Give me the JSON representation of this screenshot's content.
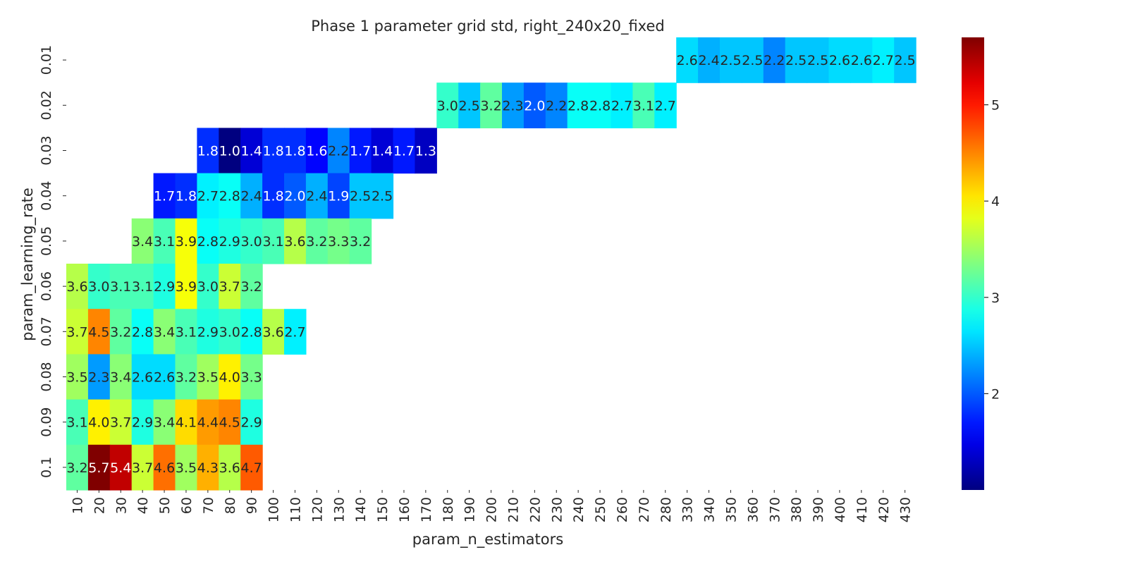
{
  "chart_data": {
    "type": "heatmap",
    "title": "Phase 1 parameter grid std, right_240x20_fixed",
    "xlabel": "param_n_estimators",
    "ylabel": "param_learning_rate",
    "colormap": "jet",
    "color_range": [
      1.0,
      5.7
    ],
    "colorbar_ticks": [
      2,
      3,
      4,
      5
    ],
    "x_categories": [
      "10",
      "20",
      "30",
      "40",
      "50",
      "60",
      "70",
      "80",
      "90",
      "100",
      "110",
      "120",
      "130",
      "140",
      "150",
      "160",
      "170",
      "180",
      "190",
      "200",
      "210",
      "220",
      "230",
      "240",
      "250",
      "260",
      "270",
      "280",
      "330",
      "340",
      "350",
      "360",
      "370",
      "380",
      "390",
      "400",
      "410",
      "420",
      "430"
    ],
    "y_categories": [
      "0.01",
      "0.02",
      "0.03",
      "0.04",
      "0.05",
      "0.06",
      "0.07",
      "0.08",
      "0.09",
      "0.1"
    ],
    "rows": [
      {
        "y": "0.01",
        "start": 28,
        "values": [
          2.6,
          2.4,
          2.5,
          2.5,
          2.2,
          2.5,
          2.5,
          2.6,
          2.6,
          2.7,
          2.5
        ]
      },
      {
        "y": "0.02",
        "start": 17,
        "values": [
          3.0,
          2.5,
          3.2,
          2.3,
          2.0,
          2.2,
          2.8,
          2.8,
          2.7,
          3.1,
          2.7
        ]
      },
      {
        "y": "0.03",
        "start": 6,
        "values": [
          1.8,
          1.0,
          1.4,
          1.8,
          1.8,
          1.6,
          2.2,
          1.7,
          1.4,
          1.7,
          1.3
        ]
      },
      {
        "y": "0.04",
        "start": 4,
        "values": [
          1.7,
          1.8,
          2.7,
          2.8,
          2.4,
          1.8,
          2.0,
          2.4,
          1.9,
          2.5,
          2.5
        ]
      },
      {
        "y": "0.05",
        "start": 3,
        "values": [
          3.4,
          3.1,
          3.9,
          2.8,
          2.9,
          3.0,
          3.1,
          3.6,
          3.2,
          3.3,
          3.2
        ]
      },
      {
        "y": "0.06",
        "start": 0,
        "values": [
          3.6,
          3.0,
          3.1,
          3.1,
          2.9,
          3.9,
          3.0,
          3.7,
          3.2
        ]
      },
      {
        "y": "0.07",
        "start": 0,
        "values": [
          3.7,
          4.5,
          3.2,
          2.8,
          3.4,
          3.1,
          2.9,
          3.0,
          2.8,
          3.6,
          2.7
        ]
      },
      {
        "y": "0.08",
        "start": 0,
        "values": [
          3.5,
          2.3,
          3.4,
          2.6,
          2.6,
          3.2,
          3.5,
          4.0,
          3.3
        ]
      },
      {
        "y": "0.09",
        "start": 0,
        "values": [
          3.1,
          4.0,
          3.7,
          2.9,
          3.4,
          4.1,
          4.4,
          4.5,
          2.9
        ]
      },
      {
        "y": "0.1",
        "start": 0,
        "values": [
          3.2,
          5.7,
          5.4,
          3.7,
          4.6,
          3.5,
          4.3,
          3.6,
          4.7
        ]
      }
    ]
  }
}
